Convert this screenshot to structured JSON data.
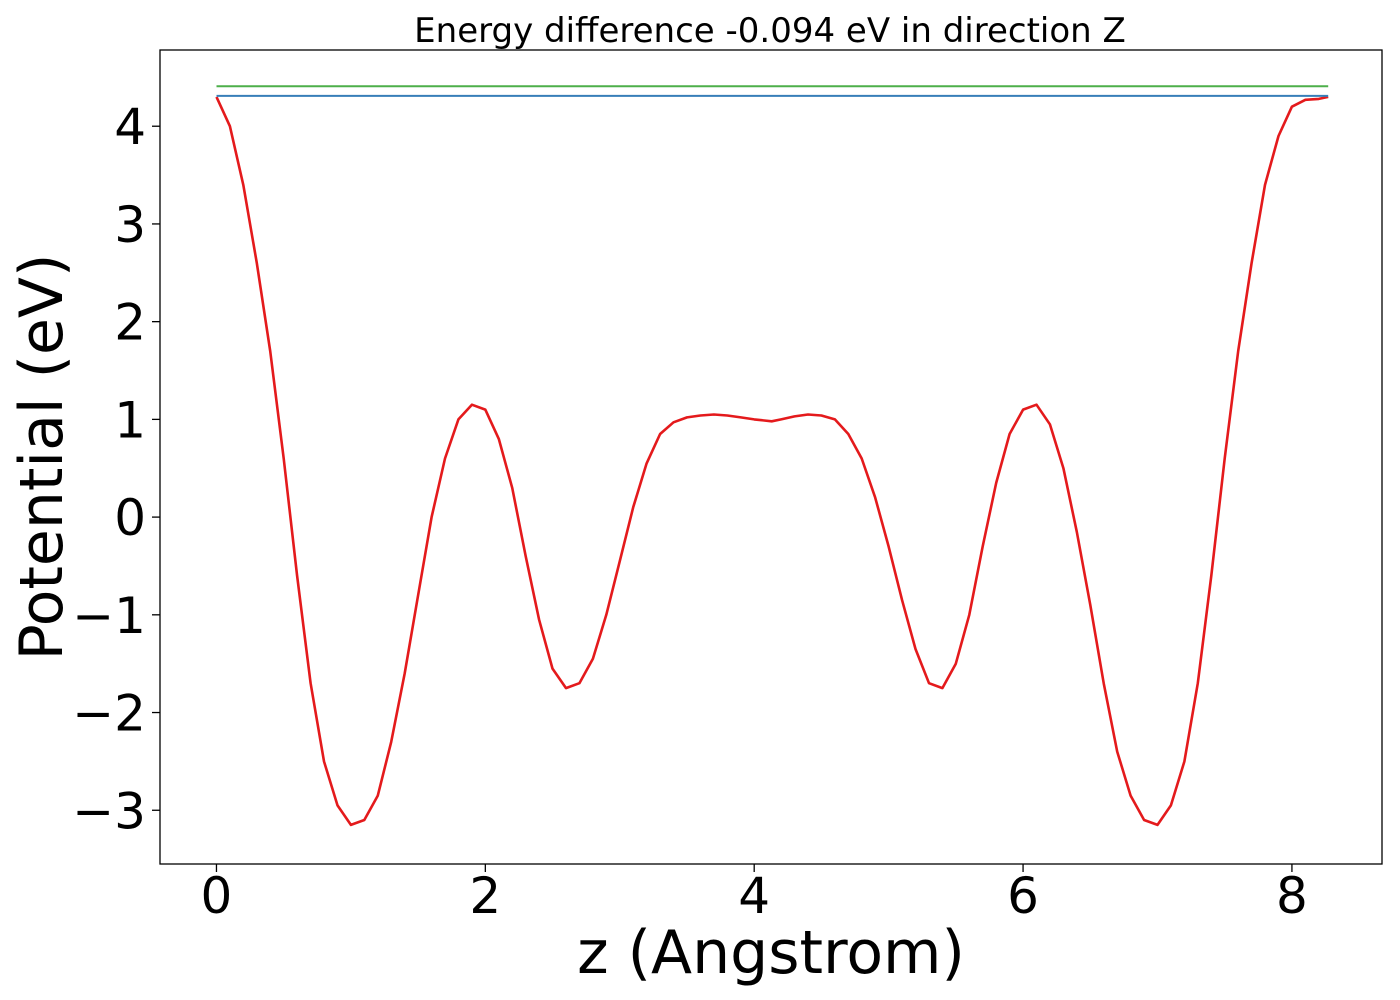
{
  "chart_data": {
    "type": "line",
    "title": "Energy difference -0.094 eV in direction Z",
    "xlabel": "z (Angstrom)",
    "ylabel": "Potential (eV)",
    "xlim": [
      -0.42,
      8.67
    ],
    "ylim": [
      -3.55,
      4.78
    ],
    "xticks": [
      0,
      2,
      4,
      6,
      8
    ],
    "xtick_labels": [
      "0",
      "2",
      "4",
      "6",
      "8"
    ],
    "yticks": [
      -3,
      -2,
      -1,
      0,
      1,
      2,
      3,
      4
    ],
    "ytick_labels": [
      "−3",
      "−2",
      "−1",
      "0",
      "1",
      "2",
      "3",
      "4"
    ],
    "grid": false,
    "series": [
      {
        "color": "#e41a1c",
        "x": [
          0.0,
          0.1,
          0.2,
          0.3,
          0.4,
          0.5,
          0.6,
          0.7,
          0.8,
          0.9,
          1.0,
          1.1,
          1.2,
          1.3,
          1.4,
          1.5,
          1.6,
          1.7,
          1.8,
          1.9,
          2.0,
          2.1,
          2.2,
          2.3,
          2.4,
          2.5,
          2.6,
          2.7,
          2.8,
          2.9,
          3.0,
          3.1,
          3.2,
          3.3,
          3.4,
          3.5,
          3.6,
          3.7,
          3.8,
          3.9,
          4.0,
          4.13,
          4.2,
          4.3,
          4.4,
          4.5,
          4.6,
          4.7,
          4.8,
          4.9,
          5.0,
          5.1,
          5.2,
          5.3,
          5.4,
          5.5,
          5.6,
          5.7,
          5.8,
          5.9,
          6.0,
          6.1,
          6.2,
          6.3,
          6.4,
          6.5,
          6.6,
          6.7,
          6.8,
          6.9,
          7.0,
          7.1,
          7.2,
          7.3,
          7.4,
          7.5,
          7.6,
          7.7,
          7.8,
          7.9,
          8.0,
          8.1,
          8.2,
          8.27
        ],
        "y": [
          4.3,
          4.0,
          3.4,
          2.6,
          1.7,
          0.6,
          -0.6,
          -1.7,
          -2.5,
          -2.95,
          -3.15,
          -3.1,
          -2.85,
          -2.3,
          -1.6,
          -0.8,
          0.0,
          0.6,
          1.0,
          1.15,
          1.1,
          0.8,
          0.3,
          -0.4,
          -1.05,
          -1.55,
          -1.75,
          -1.7,
          -1.45,
          -1.0,
          -0.45,
          0.1,
          0.55,
          0.85,
          0.97,
          1.02,
          1.04,
          1.05,
          1.04,
          1.02,
          1.0,
          0.98,
          1.0,
          1.03,
          1.05,
          1.04,
          1.0,
          0.85,
          0.6,
          0.2,
          -0.3,
          -0.85,
          -1.35,
          -1.7,
          -1.75,
          -1.5,
          -1.0,
          -0.3,
          0.35,
          0.85,
          1.1,
          1.15,
          0.95,
          0.5,
          -0.15,
          -0.9,
          -1.7,
          -2.4,
          -2.85,
          -3.1,
          -3.15,
          -2.95,
          -2.5,
          -1.7,
          -0.6,
          0.6,
          1.7,
          2.6,
          3.4,
          3.9,
          4.2,
          4.27,
          4.28,
          4.3
        ]
      },
      {
        "color": "#4daf4a",
        "x": [
          0.0,
          8.27
        ],
        "y": [
          4.41,
          4.41
        ]
      },
      {
        "color": "#377eb8",
        "x": [
          0.0,
          8.27
        ],
        "y": [
          4.31,
          4.31
        ]
      }
    ]
  }
}
